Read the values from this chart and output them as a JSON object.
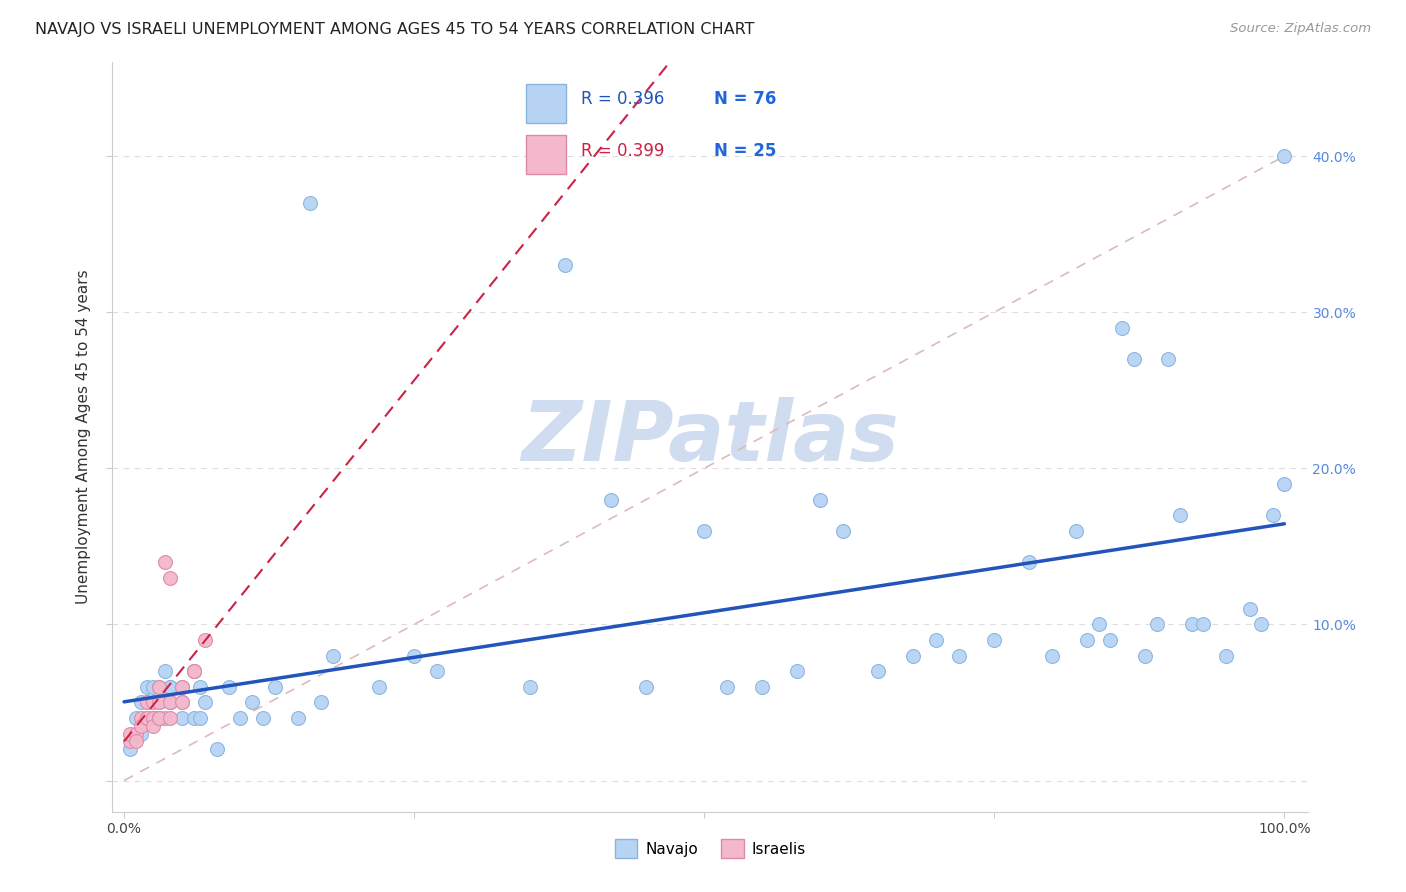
{
  "title": "NAVAJO VS ISRAELI UNEMPLOYMENT AMONG AGES 45 TO 54 YEARS CORRELATION CHART",
  "source": "Source: ZipAtlas.com",
  "ylabel": "Unemployment Among Ages 45 to 54 years",
  "xlim": [
    -0.01,
    1.02
  ],
  "ylim": [
    -0.02,
    0.46
  ],
  "navajo_R": 0.396,
  "navajo_N": 76,
  "israeli_R": 0.399,
  "israeli_N": 25,
  "navajo_color": "#b8d4f4",
  "navajo_edge_color": "#88b4e0",
  "israeli_color": "#f4b8cc",
  "israeli_edge_color": "#e088a8",
  "trend_navajo_color": "#2255bb",
  "trend_israeli_color": "#cc2244",
  "ref_line_color": "#ddbbbb",
  "watermark": "ZIPatlas",
  "watermark_color": "#d0dcf0",
  "navajo_x": [
    0.005,
    0.01,
    0.01,
    0.015,
    0.015,
    0.02,
    0.02,
    0.02,
    0.025,
    0.025,
    0.03,
    0.03,
    0.03,
    0.03,
    0.035,
    0.035,
    0.04,
    0.04,
    0.04,
    0.04,
    0.05,
    0.05,
    0.05,
    0.06,
    0.06,
    0.065,
    0.065,
    0.07,
    0.08,
    0.09,
    0.1,
    0.11,
    0.12,
    0.13,
    0.15,
    0.16,
    0.17,
    0.18,
    0.22,
    0.25,
    0.27,
    0.35,
    0.38,
    0.42,
    0.45,
    0.5,
    0.52,
    0.55,
    0.58,
    0.6,
    0.62,
    0.65,
    0.68,
    0.7,
    0.72,
    0.75,
    0.78,
    0.8,
    0.82,
    0.83,
    0.84,
    0.85,
    0.86,
    0.87,
    0.88,
    0.89,
    0.9,
    0.91,
    0.92,
    0.93,
    0.95,
    0.97,
    0.98,
    0.99,
    1.0,
    1.0
  ],
  "navajo_y": [
    0.02,
    0.04,
    0.03,
    0.05,
    0.03,
    0.05,
    0.04,
    0.06,
    0.04,
    0.06,
    0.04,
    0.05,
    0.04,
    0.06,
    0.04,
    0.07,
    0.05,
    0.06,
    0.05,
    0.06,
    0.05,
    0.04,
    0.06,
    0.04,
    0.07,
    0.06,
    0.04,
    0.05,
    0.02,
    0.06,
    0.04,
    0.05,
    0.04,
    0.06,
    0.04,
    0.37,
    0.05,
    0.08,
    0.06,
    0.08,
    0.07,
    0.06,
    0.33,
    0.18,
    0.06,
    0.16,
    0.06,
    0.06,
    0.07,
    0.18,
    0.16,
    0.07,
    0.08,
    0.09,
    0.08,
    0.09,
    0.14,
    0.08,
    0.16,
    0.09,
    0.1,
    0.09,
    0.29,
    0.27,
    0.08,
    0.1,
    0.27,
    0.17,
    0.1,
    0.1,
    0.08,
    0.11,
    0.1,
    0.17,
    0.4,
    0.19
  ],
  "israeli_x": [
    0.005,
    0.005,
    0.01,
    0.01,
    0.015,
    0.015,
    0.02,
    0.02,
    0.02,
    0.025,
    0.025,
    0.025,
    0.03,
    0.03,
    0.03,
    0.03,
    0.035,
    0.04,
    0.04,
    0.04,
    0.05,
    0.05,
    0.06,
    0.06,
    0.07
  ],
  "israeli_y": [
    0.025,
    0.03,
    0.03,
    0.025,
    0.04,
    0.035,
    0.04,
    0.05,
    0.04,
    0.04,
    0.035,
    0.05,
    0.04,
    0.04,
    0.05,
    0.06,
    0.14,
    0.13,
    0.04,
    0.05,
    0.06,
    0.05,
    0.07,
    0.07,
    0.09
  ],
  "background_color": "#ffffff",
  "grid_color": "#dddddd",
  "title_fontsize": 11.5,
  "axis_label_fontsize": 11,
  "tick_fontsize": 10,
  "legend_fontsize": 12,
  "source_fontsize": 9.5,
  "marker_size": 100
}
